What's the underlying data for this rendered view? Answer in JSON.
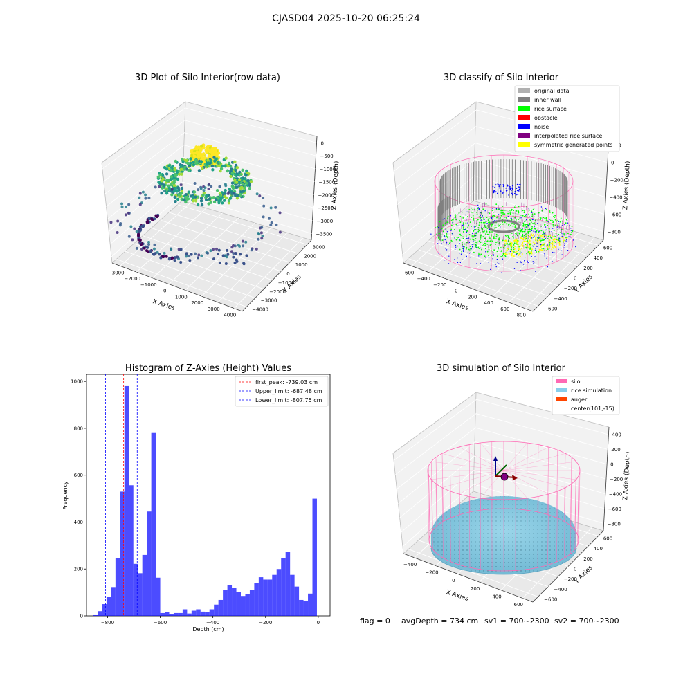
{
  "suptitle": "CJASD04 2025-10-20 06:25:24",
  "footer": {
    "flag": "flag = 0",
    "avg_depth": "avgDepth = 734 cm",
    "sv1": "sv1 = 700~2300",
    "sv2": "sv2 = 700~2300"
  },
  "colors": {
    "hist_bar": "#0000ff",
    "peak_line": "#ff0000",
    "limit_line": "#0000ff",
    "silo": "#ff69b4",
    "rice_simulation": "#87ceeb",
    "auger": "#ff4500",
    "inner_wall": "#808080",
    "rice_surface": "#00ff00",
    "obstacle": "#ff0000",
    "noise": "#0000ff",
    "interpolated": "#800080",
    "symmetric": "#ffff00",
    "original": "#b0b0b0"
  },
  "chart_data": [
    {
      "type": "scatter",
      "projection": "3d",
      "title": "3D Plot of Silo Interior(row data)",
      "xlabel": "X Axies",
      "ylabel": "Y Axies",
      "zlabel": "Z Axies (Depth)",
      "x_ticks": [
        "−3000",
        "−2000",
        "−1000",
        "0",
        "1000",
        "2000",
        "3000",
        "4000"
      ],
      "y_ticks": [
        "−4000",
        "−3000",
        "−2000",
        "−1000",
        "0",
        "1000",
        "2000",
        "3000"
      ],
      "z_ticks": [
        "0",
        "−500",
        "−1000",
        "−1500",
        "−2000",
        "−2500",
        "−3000",
        "−3500"
      ],
      "colormap": "viridis (by depth)"
    },
    {
      "type": "scatter",
      "projection": "3d",
      "title": "3D classify of Silo Interior",
      "xlabel": "X Axies",
      "ylabel": "Y Axies",
      "zlabel": "Z Axies (Depth)",
      "x_ticks": [
        "−600",
        "−400",
        "−200",
        "0",
        "200",
        "400",
        "600",
        "800"
      ],
      "y_ticks": [
        "−600",
        "−400",
        "−200",
        "0",
        "200",
        "400",
        "600"
      ],
      "z_ticks": [
        "200",
        "0",
        "−200",
        "−400",
        "−600",
        "−800"
      ],
      "z_top_partial": "00",
      "legend": [
        {
          "name": "original data",
          "color": "#b0b0b0"
        },
        {
          "name": "inner wall",
          "color": "#808080"
        },
        {
          "name": "rice surface",
          "color": "#00ff00"
        },
        {
          "name": "obstacle",
          "color": "#ff0000"
        },
        {
          "name": "noise",
          "color": "#0000ff"
        },
        {
          "name": "interpolated rice surface",
          "color": "#800080"
        },
        {
          "name": "symmetric generated points",
          "color": "#ffff00"
        }
      ],
      "legend_placement": "top-right"
    },
    {
      "type": "bar",
      "title": "Histogram of Z-Axies (Height) Values",
      "xlabel": "Depth (cm)",
      "ylabel": "Frequency",
      "xlim": [
        -880,
        45
      ],
      "ylim": [
        0,
        1030
      ],
      "x_ticks": [
        -800,
        -600,
        -400,
        -200,
        0
      ],
      "x_tick_labels": [
        "−800",
        "−600",
        "−400",
        "−200",
        "0"
      ],
      "y_ticks": [
        0,
        200,
        400,
        600,
        800,
        1000
      ],
      "bins": [
        {
          "x0": -855,
          "x1": -838,
          "count": 3
        },
        {
          "x0": -838,
          "x1": -821,
          "count": 20
        },
        {
          "x0": -821,
          "x1": -804,
          "count": 50
        },
        {
          "x0": -804,
          "x1": -787,
          "count": 82
        },
        {
          "x0": -787,
          "x1": -770,
          "count": 123
        },
        {
          "x0": -770,
          "x1": -753,
          "count": 245
        },
        {
          "x0": -753,
          "x1": -736,
          "count": 530
        },
        {
          "x0": -736,
          "x1": -719,
          "count": 980
        },
        {
          "x0": -719,
          "x1": -702,
          "count": 557
        },
        {
          "x0": -702,
          "x1": -685,
          "count": 222
        },
        {
          "x0": -685,
          "x1": -668,
          "count": 182
        },
        {
          "x0": -668,
          "x1": -651,
          "count": 260
        },
        {
          "x0": -651,
          "x1": -634,
          "count": 445
        },
        {
          "x0": -634,
          "x1": -617,
          "count": 780
        },
        {
          "x0": -617,
          "x1": -600,
          "count": 163
        },
        {
          "x0": -600,
          "x1": -583,
          "count": 12
        },
        {
          "x0": -583,
          "x1": -566,
          "count": 15
        },
        {
          "x0": -566,
          "x1": -549,
          "count": 8
        },
        {
          "x0": -549,
          "x1": -532,
          "count": 12
        },
        {
          "x0": -532,
          "x1": -515,
          "count": 12
        },
        {
          "x0": -515,
          "x1": -498,
          "count": 28
        },
        {
          "x0": -498,
          "x1": -481,
          "count": 10
        },
        {
          "x0": -481,
          "x1": -464,
          "count": 22
        },
        {
          "x0": -464,
          "x1": -447,
          "count": 28
        },
        {
          "x0": -447,
          "x1": -430,
          "count": 18
        },
        {
          "x0": -430,
          "x1": -413,
          "count": 15
        },
        {
          "x0": -413,
          "x1": -396,
          "count": 28
        },
        {
          "x0": -396,
          "x1": -379,
          "count": 48
        },
        {
          "x0": -379,
          "x1": -362,
          "count": 68
        },
        {
          "x0": -362,
          "x1": -345,
          "count": 110
        },
        {
          "x0": -345,
          "x1": -328,
          "count": 132
        },
        {
          "x0": -328,
          "x1": -311,
          "count": 120
        },
        {
          "x0": -311,
          "x1": -294,
          "count": 102
        },
        {
          "x0": -294,
          "x1": -277,
          "count": 85
        },
        {
          "x0": -277,
          "x1": -260,
          "count": 92
        },
        {
          "x0": -260,
          "x1": -243,
          "count": 112
        },
        {
          "x0": -243,
          "x1": -226,
          "count": 140
        },
        {
          "x0": -226,
          "x1": -209,
          "count": 165
        },
        {
          "x0": -209,
          "x1": -192,
          "count": 155
        },
        {
          "x0": -192,
          "x1": -175,
          "count": 155
        },
        {
          "x0": -175,
          "x1": -158,
          "count": 175
        },
        {
          "x0": -158,
          "x1": -141,
          "count": 200
        },
        {
          "x0": -141,
          "x1": -124,
          "count": 245
        },
        {
          "x0": -124,
          "x1": -107,
          "count": 272
        },
        {
          "x0": -107,
          "x1": -90,
          "count": 175
        },
        {
          "x0": -90,
          "x1": -73,
          "count": 125
        },
        {
          "x0": -73,
          "x1": -56,
          "count": 68
        },
        {
          "x0": -56,
          "x1": -39,
          "count": 65
        },
        {
          "x0": -39,
          "x1": -22,
          "count": 95
        },
        {
          "x0": -22,
          "x1": -5,
          "count": 500
        }
      ],
      "vlines": [
        {
          "x": -739.03,
          "style": "dashed",
          "color": "#ff0000"
        },
        {
          "x": -687.48,
          "style": "dashed",
          "color": "#0000ff"
        },
        {
          "x": -807.75,
          "style": "dashed",
          "color": "#0000ff"
        }
      ],
      "legend": [
        {
          "label": "first_peak: -739.03 cm",
          "color": "#ff0000"
        },
        {
          "label": "Upper_limit: -687.48 cm",
          "color": "#0000ff"
        },
        {
          "label": "Lower_limit: -807.75 cm",
          "color": "#0000ff"
        }
      ],
      "legend_placement": "top-right"
    },
    {
      "type": "scatter",
      "projection": "3d",
      "title": "3D simulation of Silo Interior",
      "xlabel": "X Axies",
      "ylabel": "Y Axies",
      "zlabel": "Z Axies (Depth)",
      "x_ticks": [
        "−400",
        "−200",
        "0",
        "200",
        "400",
        "600"
      ],
      "y_ticks": [
        "−600",
        "−400",
        "−200",
        "0",
        "200",
        "400",
        "600"
      ],
      "z_ticks": [
        "400",
        "200",
        "0",
        "−200",
        "−400",
        "−600",
        "−800"
      ],
      "legend": [
        {
          "name": "silo",
          "color": "#ff69b4"
        },
        {
          "name": "rice simulation",
          "color": "#87ceeb"
        },
        {
          "name": "auger",
          "color": "#ff4500"
        },
        {
          "name": "center(101,-15)",
          "color": ""
        }
      ],
      "legend_placement": "top-right"
    }
  ]
}
